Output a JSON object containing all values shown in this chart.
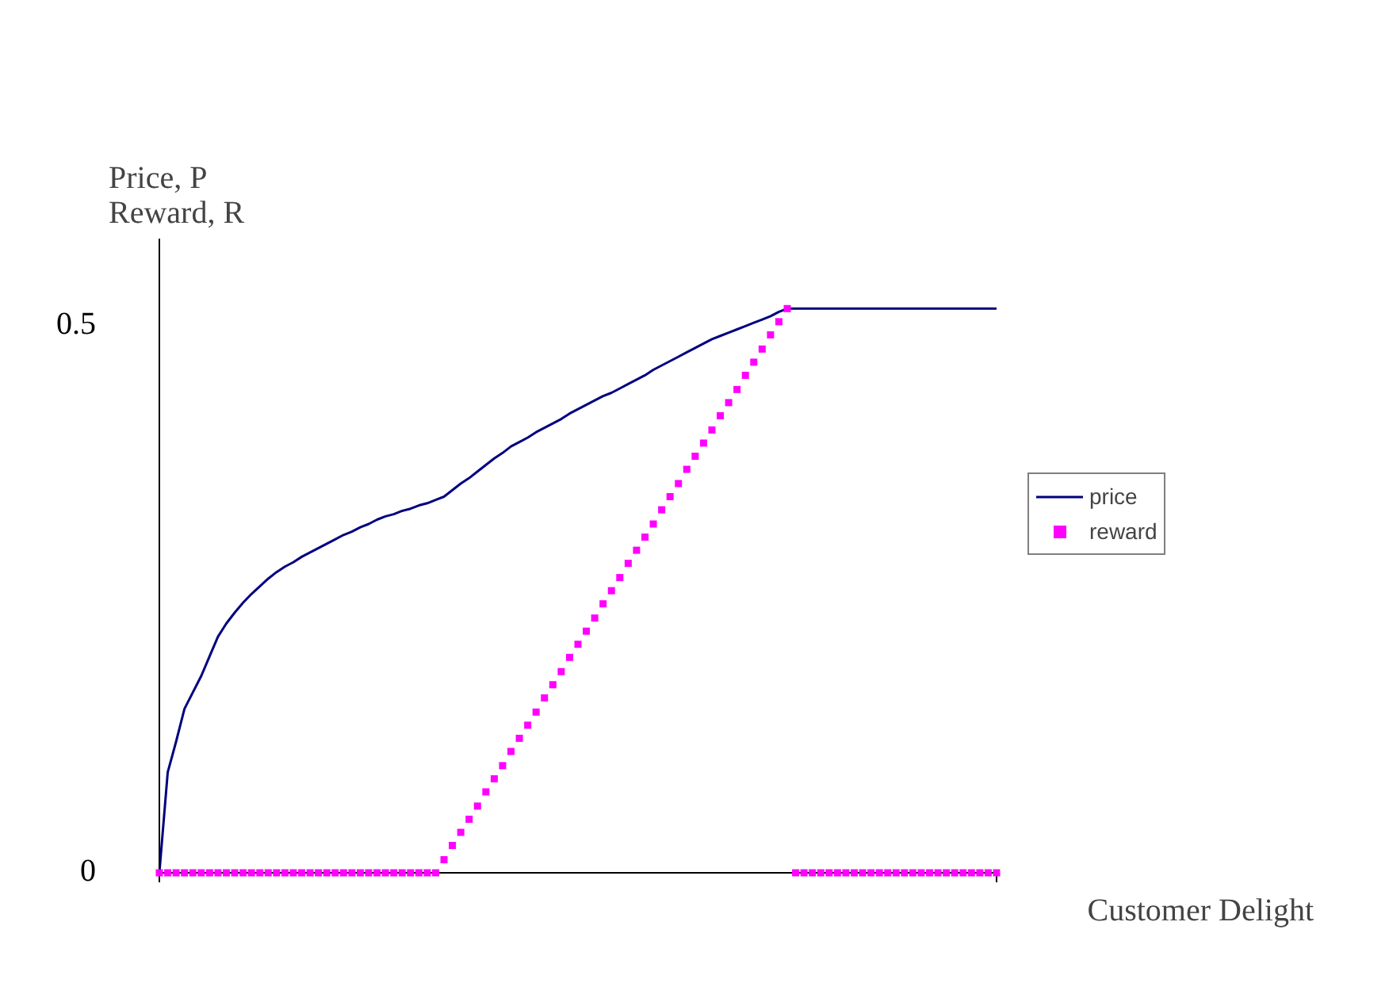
{
  "chart_data": {
    "type": "line",
    "ylabel": "Price, P\nReward, R",
    "xlabel": "Customer Delight",
    "ylim": [
      0,
      0.58
    ],
    "yticks": [
      0,
      0.5
    ],
    "tick_labels": "y",
    "grid": false,
    "legend": "right",
    "categories": [
      null,
      null,
      null,
      null,
      null,
      null,
      null,
      null,
      null,
      null,
      null,
      null,
      null,
      null,
      null,
      null,
      null,
      null,
      null,
      null,
      null,
      null,
      null,
      null,
      null,
      null,
      null,
      null,
      null,
      null,
      null,
      null,
      null,
      null,
      null,
      null,
      null,
      null,
      null,
      null,
      null,
      null,
      null,
      null,
      null,
      null,
      null,
      null,
      null,
      null,
      null,
      null,
      null,
      null,
      null,
      null,
      null,
      null,
      null,
      null,
      null,
      null,
      null,
      null,
      null,
      null,
      null,
      null,
      null,
      null,
      null,
      null,
      null,
      null,
      null,
      null,
      null,
      null,
      null,
      null,
      null,
      null,
      null,
      null,
      null,
      null,
      null,
      null,
      null,
      null,
      null,
      null,
      null,
      null,
      null,
      null,
      null,
      null,
      null,
      null,
      null
    ],
    "series": [
      {
        "name": "price",
        "color": "#000080",
        "line_style": "solid",
        "values": [
          0,
          0.092,
          0.12,
          0.15,
          0.165,
          0.18,
          0.198,
          0.216,
          0.228,
          0.238,
          0.247,
          0.255,
          0.262,
          0.269,
          0.275,
          0.28,
          0.284,
          0.289,
          0.293,
          0.297,
          0.301,
          0.305,
          0.309,
          0.312,
          0.316,
          0.319,
          0.323,
          0.326,
          0.328,
          0.331,
          0.333,
          0.336,
          0.338,
          0.341,
          0.344,
          0.35,
          0.356,
          0.361,
          0.367,
          0.373,
          0.379,
          0.384,
          0.39,
          0.394,
          0.398,
          0.403,
          0.407,
          0.411,
          0.415,
          0.42,
          0.424,
          0.428,
          0.432,
          0.436,
          0.439,
          0.443,
          0.447,
          0.451,
          0.455,
          0.46,
          0.464,
          0.468,
          0.472,
          0.476,
          0.48,
          0.484,
          0.488,
          0.491,
          0.494,
          0.497,
          0.5,
          0.503,
          0.506,
          0.509,
          0.513,
          0.516,
          0.516,
          0.516,
          0.516,
          0.516,
          0.516,
          0.516,
          0.516,
          0.516,
          0.516,
          0.516,
          0.516,
          0.516,
          0.516,
          0.516,
          0.516,
          0.516,
          0.516,
          0.516,
          0.516,
          0.516,
          0.516,
          0.516,
          0.516,
          0.516,
          0.516
        ]
      },
      {
        "name": "reward",
        "type": "scatter",
        "color": "#ff00ff",
        "marker": "square",
        "values": [
          0,
          0,
          0,
          0,
          0,
          0,
          0,
          0,
          0,
          0,
          0,
          0,
          0,
          0,
          0,
          0,
          0,
          0,
          0,
          0,
          0,
          0,
          0,
          0,
          0,
          0,
          0,
          0,
          0,
          0,
          0,
          0,
          0,
          0,
          0.012,
          0.025,
          0.037,
          0.049,
          0.061,
          0.074,
          0.086,
          0.098,
          0.111,
          0.123,
          0.135,
          0.147,
          0.16,
          0.172,
          0.184,
          0.197,
          0.209,
          0.221,
          0.233,
          0.246,
          0.258,
          0.27,
          0.283,
          0.295,
          0.307,
          0.319,
          0.332,
          0.344,
          0.356,
          0.369,
          0.381,
          0.393,
          0.405,
          0.418,
          0.43,
          0.442,
          0.455,
          0.467,
          0.479,
          0.492,
          0.504,
          0.516,
          0,
          0,
          0,
          0,
          0,
          0,
          0,
          0,
          0,
          0,
          0,
          0,
          0,
          0,
          0,
          0,
          0,
          0,
          0,
          0,
          0,
          0,
          0,
          0,
          0
        ]
      }
    ]
  }
}
